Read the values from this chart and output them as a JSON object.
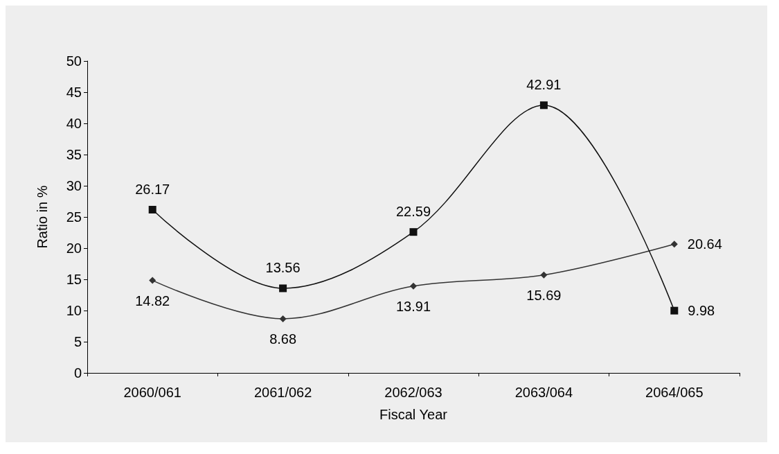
{
  "chart_data": {
    "type": "line",
    "xlabel": "Fiscal Year",
    "ylabel": "Ratio in %",
    "categories": [
      "2060/061",
      "2061/062",
      "2062/063",
      "2063/064",
      "2064/065"
    ],
    "series": [
      {
        "color": "#333333",
        "marker": "diamond",
        "values": [
          14.82,
          8.68,
          13.91,
          15.69,
          20.64
        ]
      },
      {
        "color": "#111111",
        "marker": "square",
        "values": [
          26.17,
          13.56,
          22.59,
          42.91,
          9.98
        ]
      }
    ],
    "ylim": [
      0,
      50
    ],
    "yticks": [
      0,
      5,
      10,
      15,
      20,
      25,
      30,
      35,
      40,
      45,
      50
    ],
    "grid": false,
    "data_labels": true,
    "line_style": "solid"
  }
}
